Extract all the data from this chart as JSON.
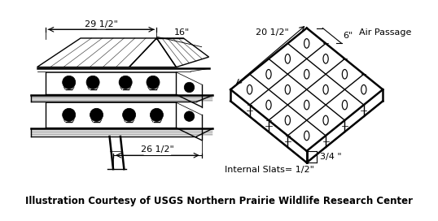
{
  "title": "Illustration Courtesy of USGS Northern Prairie Wildlife Research Center",
  "title_fontsize": 8.5,
  "bg_color": "#ffffff",
  "line_color": "#000000",
  "left_labels": {
    "29_half": "29 1/2\"",
    "16": "16\"",
    "26_half": "26 1/2\""
  },
  "right_labels": {
    "20_half": "20 1/2\"",
    "air_passage": "Air Passage",
    "6": "6\"",
    "internal_slats": "Internal Slats= 1/2\"",
    "three_quarter": "3/4 \""
  }
}
